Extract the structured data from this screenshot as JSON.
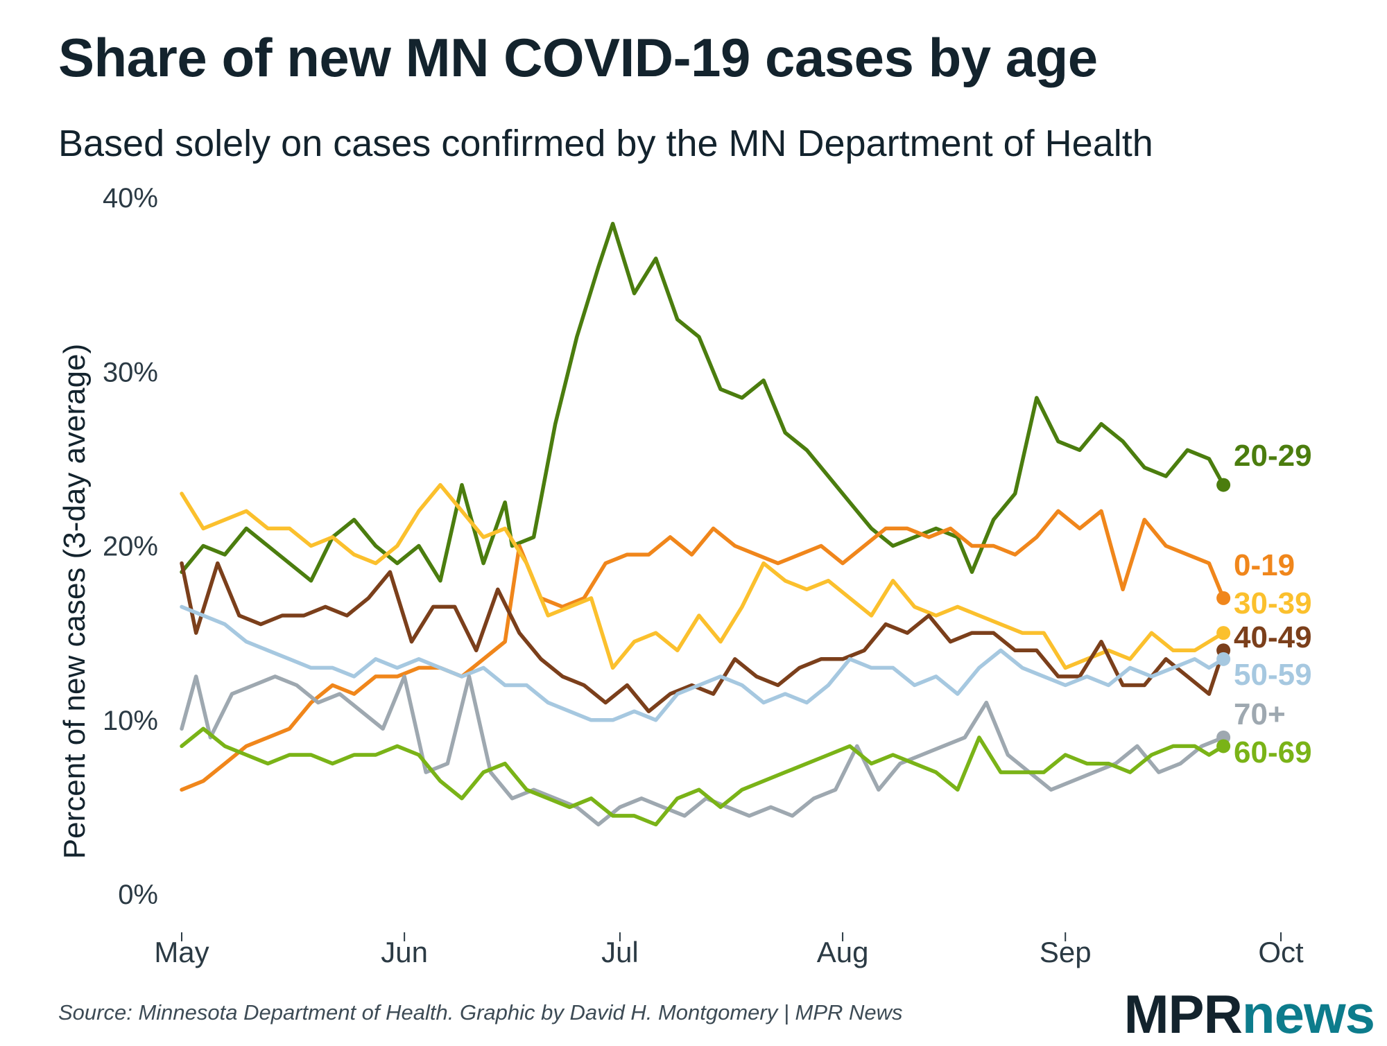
{
  "title": "Share of new MN COVID-19 cases by age",
  "subtitle": "Based solely on cases confirmed by the MN Department of Health",
  "source": "Source: Minnesota Department of Health. Graphic by David H. Montgomery | MPR News",
  "logo": {
    "part1": "MPR",
    "part2": "news"
  },
  "colors": {
    "text": "#13232d",
    "brand": "#0d7c8c"
  },
  "chart_data": {
    "type": "line",
    "ylabel": "Percent of new cases (3-day average)",
    "xlabel": "",
    "ylim": [
      0,
      40
    ],
    "xlim": [
      "2020-05-01",
      "2020-10-01"
    ],
    "yticks": [
      0,
      10,
      20,
      30,
      40
    ],
    "ytick_labels": [
      "0%",
      "10%",
      "20%",
      "30%",
      "40%"
    ],
    "xticks": [
      "2020-05-01",
      "2020-06-01",
      "2020-07-01",
      "2020-08-01",
      "2020-09-01",
      "2020-10-01"
    ],
    "xtick_labels": [
      "May",
      "Jun",
      "Jul",
      "Aug",
      "Sep",
      "Oct"
    ],
    "grid": false,
    "legend": "direct labels at line ends (right)",
    "series": [
      {
        "name": "20-29",
        "color": "#4b7d0e",
        "end_marker": true,
        "x": [
          "2020-05-01",
          "2020-05-04",
          "2020-05-07",
          "2020-05-10",
          "2020-05-13",
          "2020-05-16",
          "2020-05-19",
          "2020-05-22",
          "2020-05-25",
          "2020-05-28",
          "2020-05-31",
          "2020-06-03",
          "2020-06-06",
          "2020-06-09",
          "2020-06-12",
          "2020-06-15",
          "2020-06-16",
          "2020-06-19",
          "2020-06-22",
          "2020-06-25",
          "2020-06-28",
          "2020-06-30",
          "2020-07-03",
          "2020-07-06",
          "2020-07-09",
          "2020-07-12",
          "2020-07-15",
          "2020-07-18",
          "2020-07-21",
          "2020-07-24",
          "2020-07-27",
          "2020-07-30",
          "2020-08-02",
          "2020-08-05",
          "2020-08-08",
          "2020-08-11",
          "2020-08-14",
          "2020-08-17",
          "2020-08-19",
          "2020-08-22",
          "2020-08-25",
          "2020-08-28",
          "2020-08-31",
          "2020-09-03",
          "2020-09-06",
          "2020-09-09",
          "2020-09-12",
          "2020-09-15",
          "2020-09-18",
          "2020-09-21",
          "2020-09-23"
        ],
        "values": [
          18.5,
          20.0,
          19.5,
          21.0,
          20.0,
          19.0,
          18.0,
          20.5,
          21.5,
          20.0,
          19.0,
          20.0,
          18.0,
          23.5,
          19.0,
          22.5,
          20.0,
          20.5,
          27.0,
          32.0,
          36.0,
          38.5,
          34.5,
          36.5,
          33.0,
          32.0,
          29.0,
          28.5,
          29.5,
          26.5,
          25.5,
          24.0,
          22.5,
          21.0,
          20.0,
          20.5,
          21.0,
          20.5,
          18.5,
          21.5,
          23.0,
          28.5,
          26.0,
          25.5,
          27.0,
          26.0,
          24.5,
          24.0,
          25.5,
          25.0,
          23.5
        ]
      },
      {
        "name": "0-19",
        "color": "#f0861b",
        "end_marker": true,
        "x": [
          "2020-05-01",
          "2020-05-04",
          "2020-05-07",
          "2020-05-10",
          "2020-05-13",
          "2020-05-16",
          "2020-05-19",
          "2020-05-22",
          "2020-05-25",
          "2020-05-28",
          "2020-05-31",
          "2020-06-03",
          "2020-06-06",
          "2020-06-09",
          "2020-06-12",
          "2020-06-15",
          "2020-06-17",
          "2020-06-20",
          "2020-06-23",
          "2020-06-26",
          "2020-06-29",
          "2020-07-02",
          "2020-07-05",
          "2020-07-08",
          "2020-07-11",
          "2020-07-14",
          "2020-07-17",
          "2020-07-20",
          "2020-07-23",
          "2020-07-26",
          "2020-07-29",
          "2020-08-01",
          "2020-08-04",
          "2020-08-07",
          "2020-08-10",
          "2020-08-13",
          "2020-08-16",
          "2020-08-19",
          "2020-08-22",
          "2020-08-25",
          "2020-08-28",
          "2020-08-31",
          "2020-09-03",
          "2020-09-06",
          "2020-09-09",
          "2020-09-12",
          "2020-09-15",
          "2020-09-18",
          "2020-09-21",
          "2020-09-23"
        ],
        "values": [
          6.0,
          6.5,
          7.5,
          8.5,
          9.0,
          9.5,
          11.0,
          12.0,
          11.5,
          12.5,
          12.5,
          13.0,
          13.0,
          12.5,
          13.5,
          14.5,
          20.0,
          17.0,
          16.5,
          17.0,
          19.0,
          19.5,
          19.5,
          20.5,
          19.5,
          21.0,
          20.0,
          19.5,
          19.0,
          19.5,
          20.0,
          19.0,
          20.0,
          21.0,
          21.0,
          20.5,
          21.0,
          20.0,
          20.0,
          19.5,
          20.5,
          22.0,
          21.0,
          22.0,
          17.5,
          21.5,
          20.0,
          19.5,
          19.0,
          17.0
        ]
      },
      {
        "name": "30-39",
        "color": "#fbc02d",
        "end_marker": true,
        "x": [
          "2020-05-01",
          "2020-05-04",
          "2020-05-07",
          "2020-05-10",
          "2020-05-13",
          "2020-05-16",
          "2020-05-19",
          "2020-05-22",
          "2020-05-25",
          "2020-05-28",
          "2020-05-31",
          "2020-06-03",
          "2020-06-06",
          "2020-06-09",
          "2020-06-12",
          "2020-06-15",
          "2020-06-18",
          "2020-06-21",
          "2020-06-24",
          "2020-06-27",
          "2020-06-30",
          "2020-07-03",
          "2020-07-06",
          "2020-07-09",
          "2020-07-12",
          "2020-07-15",
          "2020-07-18",
          "2020-07-21",
          "2020-07-24",
          "2020-07-27",
          "2020-07-30",
          "2020-08-02",
          "2020-08-05",
          "2020-08-08",
          "2020-08-11",
          "2020-08-14",
          "2020-08-17",
          "2020-08-20",
          "2020-08-23",
          "2020-08-26",
          "2020-08-29",
          "2020-09-01",
          "2020-09-04",
          "2020-09-07",
          "2020-09-10",
          "2020-09-13",
          "2020-09-16",
          "2020-09-19",
          "2020-09-21",
          "2020-09-23"
        ],
        "values": [
          23.0,
          21.0,
          21.5,
          22.0,
          21.0,
          21.0,
          20.0,
          20.5,
          19.5,
          19.0,
          20.0,
          22.0,
          23.5,
          22.0,
          20.5,
          21.0,
          19.0,
          16.0,
          16.5,
          17.0,
          13.0,
          14.5,
          15.0,
          14.0,
          16.0,
          14.5,
          16.5,
          19.0,
          18.0,
          17.5,
          18.0,
          17.0,
          16.0,
          18.0,
          16.5,
          16.0,
          16.5,
          16.0,
          15.5,
          15.0,
          15.0,
          13.0,
          13.5,
          14.0,
          13.5,
          15.0,
          14.0,
          14.0,
          14.5,
          15.0
        ]
      },
      {
        "name": "40-49",
        "color": "#7b3f1b",
        "end_marker": true,
        "x": [
          "2020-05-01",
          "2020-05-03",
          "2020-05-06",
          "2020-05-09",
          "2020-05-12",
          "2020-05-15",
          "2020-05-18",
          "2020-05-21",
          "2020-05-24",
          "2020-05-27",
          "2020-05-30",
          "2020-06-02",
          "2020-06-05",
          "2020-06-08",
          "2020-06-11",
          "2020-06-14",
          "2020-06-17",
          "2020-06-20",
          "2020-06-23",
          "2020-06-26",
          "2020-06-29",
          "2020-07-02",
          "2020-07-05",
          "2020-07-08",
          "2020-07-11",
          "2020-07-14",
          "2020-07-17",
          "2020-07-20",
          "2020-07-23",
          "2020-07-26",
          "2020-07-29",
          "2020-08-01",
          "2020-08-04",
          "2020-08-07",
          "2020-08-10",
          "2020-08-13",
          "2020-08-16",
          "2020-08-19",
          "2020-08-22",
          "2020-08-25",
          "2020-08-28",
          "2020-08-31",
          "2020-09-03",
          "2020-09-06",
          "2020-09-09",
          "2020-09-12",
          "2020-09-15",
          "2020-09-18",
          "2020-09-21",
          "2020-09-23"
        ],
        "values": [
          19.0,
          15.0,
          19.0,
          16.0,
          15.5,
          16.0,
          16.0,
          16.5,
          16.0,
          17.0,
          18.5,
          14.5,
          16.5,
          16.5,
          14.0,
          17.5,
          15.0,
          13.5,
          12.5,
          12.0,
          11.0,
          12.0,
          10.5,
          11.5,
          12.0,
          11.5,
          13.5,
          12.5,
          12.0,
          13.0,
          13.5,
          13.5,
          14.0,
          15.5,
          15.0,
          16.0,
          14.5,
          15.0,
          15.0,
          14.0,
          14.0,
          12.5,
          12.5,
          14.5,
          12.0,
          12.0,
          13.5,
          12.5,
          11.5,
          14.0
        ]
      },
      {
        "name": "50-59",
        "color": "#a6c8e0",
        "end_marker": true,
        "x": [
          "2020-05-01",
          "2020-05-04",
          "2020-05-07",
          "2020-05-10",
          "2020-05-13",
          "2020-05-16",
          "2020-05-19",
          "2020-05-22",
          "2020-05-25",
          "2020-05-28",
          "2020-05-31",
          "2020-06-03",
          "2020-06-06",
          "2020-06-09",
          "2020-06-12",
          "2020-06-15",
          "2020-06-18",
          "2020-06-21",
          "2020-06-24",
          "2020-06-27",
          "2020-06-30",
          "2020-07-03",
          "2020-07-06",
          "2020-07-09",
          "2020-07-12",
          "2020-07-15",
          "2020-07-18",
          "2020-07-21",
          "2020-07-24",
          "2020-07-27",
          "2020-07-30",
          "2020-08-02",
          "2020-08-05",
          "2020-08-08",
          "2020-08-11",
          "2020-08-14",
          "2020-08-17",
          "2020-08-20",
          "2020-08-23",
          "2020-08-26",
          "2020-08-29",
          "2020-09-01",
          "2020-09-04",
          "2020-09-07",
          "2020-09-10",
          "2020-09-13",
          "2020-09-16",
          "2020-09-19",
          "2020-09-21",
          "2020-09-23"
        ],
        "values": [
          16.5,
          16.0,
          15.5,
          14.5,
          14.0,
          13.5,
          13.0,
          13.0,
          12.5,
          13.5,
          13.0,
          13.5,
          13.0,
          12.5,
          13.0,
          12.0,
          12.0,
          11.0,
          10.5,
          10.0,
          10.0,
          10.5,
          10.0,
          11.5,
          12.0,
          12.5,
          12.0,
          11.0,
          11.5,
          11.0,
          12.0,
          13.5,
          13.0,
          13.0,
          12.0,
          12.5,
          11.5,
          13.0,
          14.0,
          13.0,
          12.5,
          12.0,
          12.5,
          12.0,
          13.0,
          12.5,
          13.0,
          13.5,
          13.0,
          13.5
        ]
      },
      {
        "name": "70+",
        "color": "#9ea8b0",
        "end_marker": true,
        "x": [
          "2020-05-01",
          "2020-05-03",
          "2020-05-05",
          "2020-05-08",
          "2020-05-11",
          "2020-05-14",
          "2020-05-17",
          "2020-05-20",
          "2020-05-23",
          "2020-05-26",
          "2020-05-29",
          "2020-06-01",
          "2020-06-04",
          "2020-06-07",
          "2020-06-10",
          "2020-06-13",
          "2020-06-16",
          "2020-06-19",
          "2020-06-22",
          "2020-06-25",
          "2020-06-28",
          "2020-07-01",
          "2020-07-04",
          "2020-07-07",
          "2020-07-10",
          "2020-07-13",
          "2020-07-16",
          "2020-07-19",
          "2020-07-22",
          "2020-07-25",
          "2020-07-28",
          "2020-07-31",
          "2020-08-03",
          "2020-08-06",
          "2020-08-09",
          "2020-08-12",
          "2020-08-15",
          "2020-08-18",
          "2020-08-21",
          "2020-08-24",
          "2020-08-27",
          "2020-08-30",
          "2020-09-02",
          "2020-09-05",
          "2020-09-08",
          "2020-09-11",
          "2020-09-14",
          "2020-09-17",
          "2020-09-20",
          "2020-09-23"
        ],
        "values": [
          9.5,
          12.5,
          9.0,
          11.5,
          12.0,
          12.5,
          12.0,
          11.0,
          11.5,
          10.5,
          9.5,
          12.5,
          7.0,
          7.5,
          12.5,
          7.0,
          5.5,
          6.0,
          5.5,
          5.0,
          4.0,
          5.0,
          5.5,
          5.0,
          4.5,
          5.5,
          5.0,
          4.5,
          5.0,
          4.5,
          5.5,
          6.0,
          8.5,
          6.0,
          7.5,
          8.0,
          8.5,
          9.0,
          11.0,
          8.0,
          7.0,
          6.0,
          6.5,
          7.0,
          7.5,
          8.5,
          7.0,
          7.5,
          8.5,
          9.0
        ]
      },
      {
        "name": "60-69",
        "color": "#7ab317",
        "end_marker": true,
        "x": [
          "2020-05-01",
          "2020-05-04",
          "2020-05-07",
          "2020-05-10",
          "2020-05-13",
          "2020-05-16",
          "2020-05-19",
          "2020-05-22",
          "2020-05-25",
          "2020-05-28",
          "2020-05-31",
          "2020-06-03",
          "2020-06-06",
          "2020-06-09",
          "2020-06-12",
          "2020-06-15",
          "2020-06-18",
          "2020-06-21",
          "2020-06-24",
          "2020-06-27",
          "2020-06-30",
          "2020-07-03",
          "2020-07-06",
          "2020-07-09",
          "2020-07-12",
          "2020-07-15",
          "2020-07-18",
          "2020-07-21",
          "2020-07-24",
          "2020-07-27",
          "2020-07-30",
          "2020-08-02",
          "2020-08-05",
          "2020-08-08",
          "2020-08-11",
          "2020-08-14",
          "2020-08-17",
          "2020-08-20",
          "2020-08-23",
          "2020-08-26",
          "2020-08-29",
          "2020-09-01",
          "2020-09-04",
          "2020-09-07",
          "2020-09-10",
          "2020-09-13",
          "2020-09-16",
          "2020-09-19",
          "2020-09-21",
          "2020-09-23"
        ],
        "values": [
          8.5,
          9.5,
          8.5,
          8.0,
          7.5,
          8.0,
          8.0,
          7.5,
          8.0,
          8.0,
          8.5,
          8.0,
          6.5,
          5.5,
          7.0,
          7.5,
          6.0,
          5.5,
          5.0,
          5.5,
          4.5,
          4.5,
          4.0,
          5.5,
          6.0,
          5.0,
          6.0,
          6.5,
          7.0,
          7.5,
          8.0,
          8.5,
          7.5,
          8.0,
          7.5,
          7.0,
          6.0,
          9.0,
          7.0,
          7.0,
          7.0,
          8.0,
          7.5,
          7.5,
          7.0,
          8.0,
          8.5,
          8.5,
          8.0,
          8.5
        ]
      }
    ]
  }
}
